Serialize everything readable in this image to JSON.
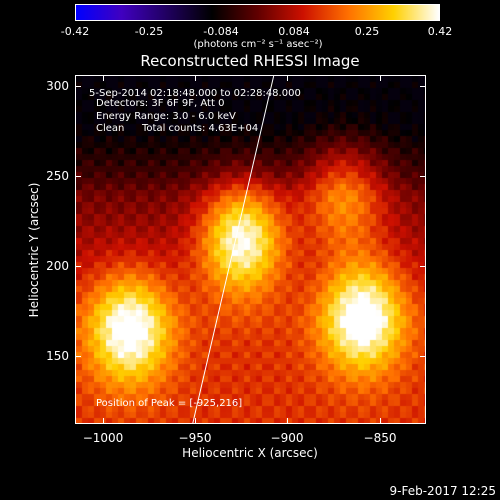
{
  "colorbar": {
    "tick_labels": [
      "-0.42",
      "-0.25",
      "-0.084",
      "0.084",
      "0.25",
      "0.42"
    ],
    "tick_values": [
      -0.42,
      -0.25,
      -0.084,
      0.084,
      0.25,
      0.42
    ],
    "range": [
      -0.42,
      0.42
    ],
    "unit_label": "(photons cm⁻² s⁻¹ asec⁻²)",
    "colors": [
      "#0000ff",
      "#4000c0",
      "#200060",
      "#000000",
      "#600000",
      "#cc1000",
      "#ff7000",
      "#ffd000",
      "#ffffff"
    ]
  },
  "annotations": {
    "time": "5-Sep-2014 02:18:48.000 to 02:28:48.000",
    "detectors": "Detectors: 3F 6F 9F, Att 0",
    "energy": "Energy Range: 3.0 - 6.0 keV",
    "clean": "Clean",
    "counts": "Total counts: 4.63E+04",
    "peak": "Position of Peak = [-925,216]"
  },
  "footer": {
    "timestamp": "9-Feb-2017 12:25"
  },
  "chart_data": {
    "type": "heatmap",
    "title": "Reconstructed RHESSI Image",
    "xlabel": "Heliocentric X (arcsec)",
    "ylabel": "Heliocentric Y (arcsec)",
    "xlim": [
      -1015,
      -825
    ],
    "ylim": [
      112,
      306
    ],
    "xticks": [
      -1000,
      -950,
      -900,
      -850
    ],
    "xtick_labels": [
      "−1000",
      "−950",
      "−900",
      "−850"
    ],
    "yticks": [
      150,
      200,
      250,
      300
    ],
    "ytick_labels": [
      "150",
      "200",
      "250",
      "300"
    ],
    "intensity_range": [
      -0.42,
      0.42
    ],
    "peak_position": [
      -925,
      216
    ],
    "sources": [
      {
        "x": -925,
        "y": 216,
        "value": 0.42
      },
      {
        "x": -986,
        "y": 165,
        "value": 0.38
      },
      {
        "x": -860,
        "y": 172,
        "value": 0.4
      },
      {
        "x": -870,
        "y": 240,
        "value": 0.25
      }
    ],
    "limb_line": {
      "x": [
        -952,
        -908
      ],
      "y": [
        112,
        306
      ]
    }
  }
}
